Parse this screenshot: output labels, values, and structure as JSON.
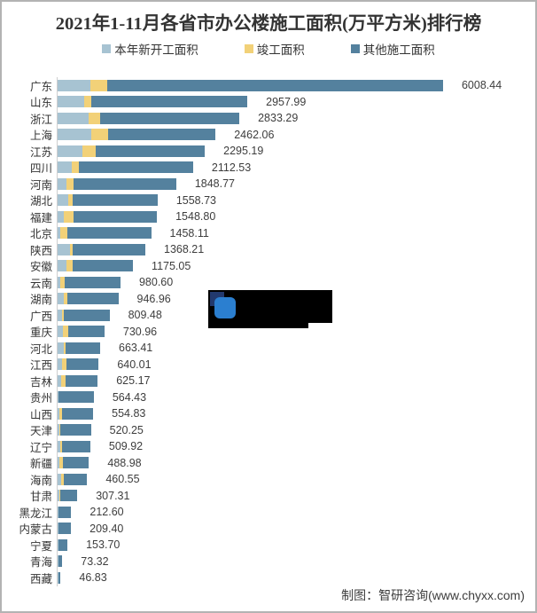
{
  "title": "2021年1-11月各省市办公楼施工面积(万平方米)排行榜",
  "footer": "制图：智研咨询(www.chyxx.com)",
  "colors": {
    "new_started": "#a7c3d2",
    "completed": "#f2d178",
    "other": "#54819e",
    "axis": "#cfcfcf",
    "border": "#b3b3b3",
    "watermark_bg": "#000000",
    "watermark_logo_navy": "#22396e",
    "watermark_logo_blue": "#2b7fd0"
  },
  "legend": [
    {
      "label": "本年新开工面积",
      "color": "#a7c3d2"
    },
    {
      "label": "竣工面积",
      "color": "#f2d178"
    },
    {
      "label": "其他施工面积",
      "color": "#54819e"
    }
  ],
  "chart_data": {
    "type": "bar",
    "orientation": "horizontal",
    "title": "2021年1-11月各省市办公楼施工面积(万平方米)排行榜",
    "unit": "万平方米",
    "legend_position": "top",
    "grid": false,
    "value_labels": "right-of-bar",
    "max_value": 6008.44,
    "series_names": [
      "本年新开工面积",
      "竣工面积",
      "其他施工面积"
    ],
    "note": "totals are printed on the chart; per-segment splits are estimated from bar pixel lengths",
    "rows": [
      {
        "name": "广东",
        "total": "6008.44",
        "segments": [
          511,
          262,
          5235.44
        ]
      },
      {
        "name": "山东",
        "total": "2957.99",
        "segments": [
          414,
          110,
          2433.99
        ]
      },
      {
        "name": "浙江",
        "total": "2833.29",
        "segments": [
          483,
          175,
          2175.29
        ]
      },
      {
        "name": "上海",
        "total": "2462.06",
        "segments": [
          525,
          267,
          1670.06
        ]
      },
      {
        "name": "江苏",
        "total": "2295.19",
        "segments": [
          382,
          217,
          1696.19
        ]
      },
      {
        "name": "四川",
        "total": "2112.53",
        "segments": [
          217,
          120,
          1775.53
        ]
      },
      {
        "name": "河南",
        "total": "1848.77",
        "segments": [
          138,
          106,
          1604.77
        ]
      },
      {
        "name": "湖北",
        "total": "1558.73",
        "segments": [
          170,
          59,
          1329.73
        ]
      },
      {
        "name": "福建",
        "total": "1548.80",
        "segments": [
          101,
          148,
          1299.8
        ]
      },
      {
        "name": "北京",
        "total": "1458.11",
        "segments": [
          46,
          106,
          1306.11
        ]
      },
      {
        "name": "陕西",
        "total": "1368.21",
        "segments": [
          193,
          37,
          1138.21
        ]
      },
      {
        "name": "安徽",
        "total": "1175.05",
        "segments": [
          138,
          101,
          936.05
        ]
      },
      {
        "name": "云南",
        "total": "980.60",
        "segments": [
          46,
          61,
          873.6
        ]
      },
      {
        "name": "湖南",
        "total": "946.96",
        "segments": [
          101,
          55,
          790.96
        ]
      },
      {
        "name": "广西",
        "total": "809.48",
        "segments": [
          65,
          28,
          716.48
        ]
      },
      {
        "name": "重庆",
        "total": "730.96",
        "segments": [
          79,
          90,
          561.96
        ]
      },
      {
        "name": "河北",
        "total": "663.41",
        "segments": [
          93,
          32,
          538.41
        ]
      },
      {
        "name": "江西",
        "total": "640.01",
        "segments": [
          65,
          80,
          495.01
        ]
      },
      {
        "name": "吉林",
        "total": "625.17",
        "segments": [
          55,
          69,
          501.17
        ]
      },
      {
        "name": "贵州",
        "total": "564.43",
        "segments": [
          15,
          5,
          544.43
        ]
      },
      {
        "name": "山西",
        "total": "554.83",
        "segments": [
          32,
          37,
          485.83
        ]
      },
      {
        "name": "天津",
        "total": "520.25",
        "segments": [
          32,
          10,
          478.25
        ]
      },
      {
        "name": "辽宁",
        "total": "509.92",
        "segments": [
          46,
          23,
          440.92
        ]
      },
      {
        "name": "新疆",
        "total": "488.98",
        "segments": [
          32,
          46,
          410.98
        ]
      },
      {
        "name": "海南",
        "total": "460.55",
        "segments": [
          59,
          32,
          369.55
        ]
      },
      {
        "name": "甘肃",
        "total": "307.31",
        "segments": [
          28,
          18,
          261.31
        ]
      },
      {
        "name": "黑龙江",
        "total": "212.60",
        "segments": [
          8,
          3,
          201.6
        ]
      },
      {
        "name": "内蒙古",
        "total": "209.40",
        "segments": [
          10,
          10,
          189.4
        ]
      },
      {
        "name": "宁夏",
        "total": "153.70",
        "segments": [
          8,
          2,
          143.7
        ]
      },
      {
        "name": "青海",
        "total": "73.32",
        "segments": [
          10,
          2,
          61.32
        ]
      },
      {
        "name": "西藏",
        "total": "46.83",
        "segments": [
          8,
          1,
          37.83
        ]
      }
    ]
  }
}
